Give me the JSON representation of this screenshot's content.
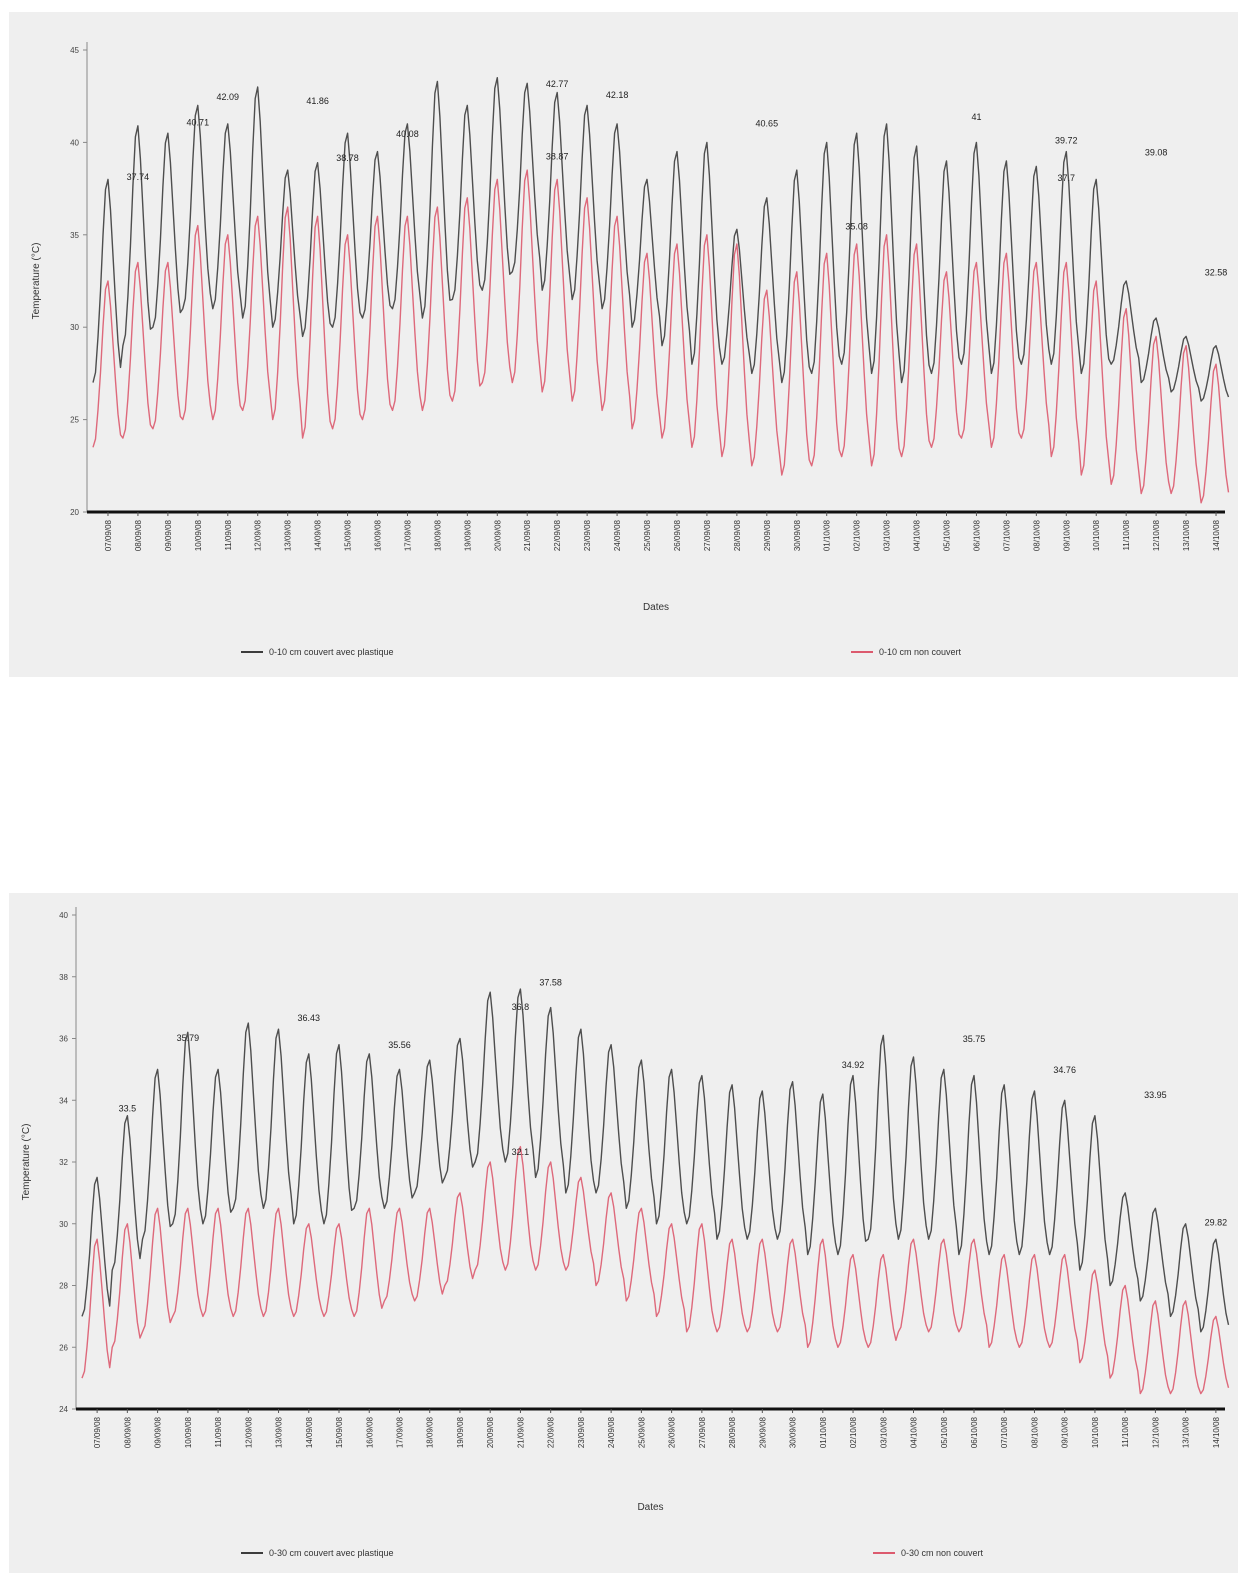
{
  "colors": {
    "covered": "#3c3c3c",
    "uncovered": "#dc5a6e",
    "background": "#efefef"
  },
  "chart_data": [
    {
      "type": "line",
      "xlabel": "Dates",
      "ylabel": "Temperature (°C)",
      "ylim": [
        20,
        45
      ],
      "yticks": [
        "20",
        "25",
        "30",
        "35",
        "40",
        "45"
      ],
      "x": [
        "07/09/08",
        "08/09/08",
        "09/09/08",
        "10/09/08",
        "11/09/08",
        "12/09/08",
        "13/09/08",
        "14/09/08",
        "15/09/08",
        "16/09/08",
        "17/09/08",
        "18/09/08",
        "19/09/08",
        "20/09/08",
        "21/09/08",
        "22/09/08",
        "23/09/08",
        "24/09/08",
        "25/09/08",
        "26/09/08",
        "27/09/08",
        "28/09/08",
        "29/09/08",
        "30/09/08",
        "01/10/08",
        "02/10/08",
        "03/10/08",
        "04/10/08",
        "05/10/08",
        "06/10/08",
        "07/10/08",
        "08/10/08",
        "09/10/08",
        "10/10/08",
        "11/10/08",
        "12/10/08",
        "13/10/08",
        "14/10/08"
      ],
      "grid": false,
      "legend_position": "bottom",
      "series": [
        {
          "name": "0-10 cm couvert avec plastique",
          "color": "#3c3c3c",
          "daily_max": [
            38.0,
            40.9,
            40.5,
            42.0,
            41.0,
            43.0,
            38.5,
            38.9,
            40.5,
            39.5,
            41.0,
            43.3,
            42.0,
            43.5,
            43.2,
            42.7,
            42.0,
            41.0,
            38.0,
            39.5,
            40.0,
            35.3,
            37.0,
            38.5,
            40.0,
            40.5,
            41.0,
            39.8,
            39.0,
            40.0,
            39.0,
            38.7,
            39.5,
            38.0,
            32.5,
            30.5,
            29.5,
            29.0
          ],
          "daily_min": [
            27.0,
            29.0,
            30.0,
            31.0,
            31.0,
            30.5,
            30.0,
            29.5,
            30.0,
            30.5,
            31.0,
            30.5,
            31.5,
            32.0,
            33.0,
            32.0,
            31.5,
            31.0,
            30.0,
            29.0,
            28.0,
            28.0,
            27.5,
            27.0,
            27.5,
            28.0,
            27.5,
            27.0,
            27.5,
            28.0,
            27.5,
            28.0,
            28.0,
            27.5,
            28.0,
            27.0,
            26.5,
            26.0
          ],
          "labels": [
            {
              "x": "08/09/08",
              "text": "37.74"
            },
            {
              "x": "10/09/08",
              "text": "40.71"
            },
            {
              "x": "11/09/08",
              "text": "42.09"
            },
            {
              "x": "14/09/08",
              "text": "41.86"
            },
            {
              "x": "15/09/08",
              "text": "38.78"
            },
            {
              "x": "17/09/08",
              "text": "40.08"
            },
            {
              "x": "22/09/08",
              "text": "42.77"
            },
            {
              "x": "24/09/08",
              "text": "42.18"
            },
            {
              "x": "29/09/08",
              "text": "40.65"
            },
            {
              "x": "02/10/08",
              "text": "35.08"
            },
            {
              "x": "06/10/08",
              "text": "41"
            },
            {
              "x": "09/10/08",
              "text": "37.7"
            },
            {
              "x": "09/10/08",
              "text": "39.72"
            },
            {
              "x": "12/10/08",
              "text": "39.08"
            },
            {
              "x": "14/10/08",
              "text": "32.58"
            }
          ]
        },
        {
          "name": "0-10 cm non couvert",
          "color": "#dc5a6e",
          "daily_max": [
            32.5,
            33.5,
            33.5,
            35.5,
            35.0,
            36.0,
            36.5,
            36.0,
            35.0,
            36.0,
            36.0,
            36.5,
            37.0,
            38.0,
            38.5,
            38.0,
            37.0,
            36.0,
            34.0,
            34.5,
            35.0,
            34.5,
            32.0,
            33.0,
            34.0,
            34.5,
            35.0,
            34.5,
            33.0,
            33.5,
            34.0,
            33.5,
            33.5,
            32.5,
            31.0,
            29.5,
            29.0,
            28.0
          ],
          "daily_min": [
            23.5,
            24.0,
            24.5,
            25.0,
            25.0,
            25.5,
            25.0,
            24.0,
            24.5,
            25.0,
            25.5,
            25.5,
            26.0,
            27.0,
            27.0,
            26.5,
            26.0,
            25.5,
            24.5,
            24.0,
            23.5,
            23.0,
            22.5,
            22.0,
            22.5,
            23.0,
            22.5,
            23.0,
            23.5,
            24.0,
            23.5,
            24.0,
            23.0,
            22.0,
            21.5,
            21.0,
            21.0,
            20.5
          ],
          "labels": [
            {
              "x": "22/09/08",
              "text": "38.87"
            }
          ]
        }
      ]
    },
    {
      "type": "line",
      "xlabel": "Dates",
      "ylabel": "Temperature (°C)",
      "ylim": [
        24,
        40
      ],
      "yticks": [
        "24",
        "26",
        "28",
        "30",
        "32",
        "34",
        "36",
        "38",
        "40"
      ],
      "x": [
        "07/09/08",
        "08/09/08",
        "09/09/08",
        "10/09/08",
        "11/09/08",
        "12/09/08",
        "13/09/08",
        "14/09/08",
        "15/09/08",
        "16/09/08",
        "17/09/08",
        "18/09/08",
        "19/09/08",
        "20/09/08",
        "21/09/08",
        "22/09/08",
        "23/09/08",
        "24/09/08",
        "25/09/08",
        "26/09/08",
        "27/09/08",
        "28/09/08",
        "29/09/08",
        "30/09/08",
        "01/10/08",
        "02/10/08",
        "03/10/08",
        "04/10/08",
        "05/10/08",
        "06/10/08",
        "07/10/08",
        "08/10/08",
        "09/10/08",
        "10/10/08",
        "11/10/08",
        "12/10/08",
        "13/10/08",
        "14/10/08"
      ],
      "grid": false,
      "legend_position": "bottom",
      "series": [
        {
          "name": "0-30 cm couvert avec plastique",
          "color": "#3c3c3c",
          "daily_max": [
            31.5,
            33.5,
            35.0,
            36.2,
            35.0,
            36.5,
            36.3,
            35.5,
            35.8,
            35.5,
            35.0,
            35.3,
            36.0,
            37.5,
            37.6,
            37.0,
            36.3,
            35.8,
            35.3,
            35.0,
            34.8,
            34.5,
            34.3,
            34.6,
            34.2,
            34.8,
            36.1,
            35.4,
            35.0,
            34.8,
            34.5,
            34.3,
            34.0,
            33.5,
            31.0,
            30.5,
            30.0,
            29.5
          ],
          "daily_min": [
            27.0,
            28.5,
            29.5,
            30.0,
            30.0,
            30.5,
            30.5,
            30.0,
            30.0,
            30.5,
            30.5,
            31.0,
            31.5,
            32.0,
            32.0,
            31.5,
            31.0,
            31.0,
            30.5,
            30.0,
            30.0,
            29.5,
            29.5,
            29.5,
            29.0,
            29.0,
            29.5,
            29.5,
            29.5,
            29.0,
            29.0,
            29.0,
            29.0,
            28.5,
            28.0,
            27.5,
            27.0,
            26.5
          ],
          "labels": [
            {
              "x": "08/09/08",
              "text": "33.5"
            },
            {
              "x": "10/09/08",
              "text": "35.79"
            },
            {
              "x": "14/09/08",
              "text": "36.43"
            },
            {
              "x": "17/09/08",
              "text": "35.56"
            },
            {
              "x": "21/09/08",
              "text": "36.8"
            },
            {
              "x": "22/09/08",
              "text": "37.58"
            },
            {
              "x": "02/10/08",
              "text": "34.92"
            },
            {
              "x": "06/10/08",
              "text": "35.75"
            },
            {
              "x": "09/10/08",
              "text": "34.76"
            },
            {
              "x": "12/10/08",
              "text": "33.95"
            },
            {
              "x": "14/10/08",
              "text": "29.82"
            }
          ]
        },
        {
          "name": "0-30 cm non couvert",
          "color": "#dc5a6e",
          "daily_max": [
            29.5,
            30.0,
            30.5,
            30.5,
            30.5,
            30.5,
            30.5,
            30.0,
            30.0,
            30.5,
            30.5,
            30.5,
            31.0,
            32.0,
            32.5,
            32.0,
            31.5,
            31.0,
            30.5,
            30.0,
            30.0,
            29.5,
            29.5,
            29.5,
            29.5,
            29.0,
            29.0,
            29.5,
            29.5,
            29.5,
            29.0,
            29.0,
            29.0,
            28.5,
            28.0,
            27.5,
            27.5,
            27.0
          ],
          "daily_min": [
            25.0,
            26.0,
            26.5,
            27.0,
            27.0,
            27.0,
            27.0,
            27.0,
            27.0,
            27.0,
            27.5,
            27.5,
            28.0,
            28.5,
            28.5,
            28.5,
            28.5,
            28.0,
            27.5,
            27.0,
            26.5,
            26.5,
            26.5,
            26.5,
            26.0,
            26.0,
            26.0,
            26.5,
            26.5,
            26.5,
            26.0,
            26.0,
            26.0,
            25.5,
            25.0,
            24.5,
            24.5,
            24.5
          ],
          "labels": [
            {
              "x": "21/09/08",
              "text": "32.1"
            }
          ]
        }
      ]
    }
  ]
}
